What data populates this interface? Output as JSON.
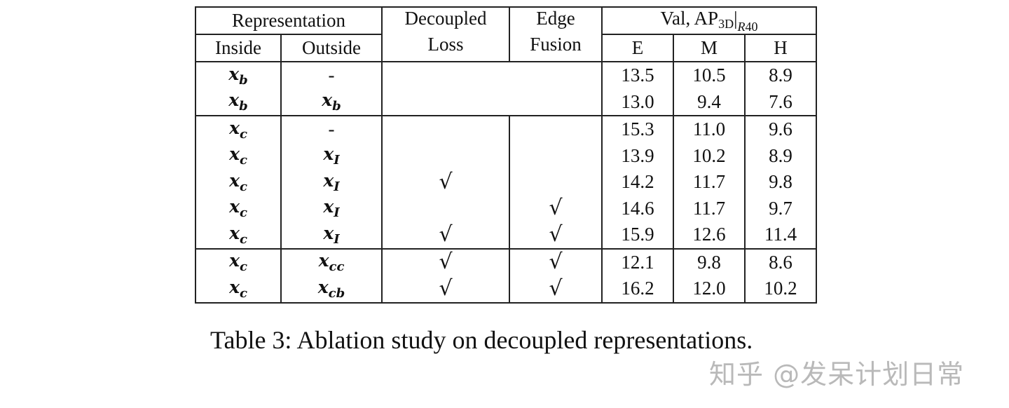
{
  "table": {
    "header": {
      "representation": "Representation",
      "inside": "Inside",
      "outside": "Outside",
      "decoupled_line1": "Decoupled",
      "decoupled_line2": "Loss",
      "edge_line1": "Edge",
      "edge_line2": "Fusion",
      "metric_prefix": "Val, AP",
      "metric_sub": "3D",
      "metric_bar": "|",
      "metric_cond": "R",
      "metric_cond_sub": "40",
      "easy": "E",
      "moderate": "M",
      "hard": "H"
    },
    "rows": [
      {
        "inside": "x",
        "inside_sub": "b",
        "outside": "-",
        "outside_sub": "",
        "decoupled": "",
        "edge": "",
        "E": "13.5",
        "M": "10.5",
        "H": "8.9",
        "bold": []
      },
      {
        "inside": "x",
        "inside_sub": "b",
        "outside": "x",
        "outside_sub": "b",
        "decoupled": "",
        "edge": "",
        "E": "13.0",
        "M": "9.4",
        "H": "7.6",
        "bold": []
      },
      {
        "inside": "x",
        "inside_sub": "c",
        "outside": "-",
        "outside_sub": "",
        "decoupled": "",
        "edge": "",
        "E": "15.3",
        "M": "11.0",
        "H": "9.6",
        "bold": []
      },
      {
        "inside": "x",
        "inside_sub": "c",
        "outside": "x",
        "outside_sub": "I",
        "decoupled": "",
        "edge": "",
        "E": "13.9",
        "M": "10.2",
        "H": "8.9",
        "bold": []
      },
      {
        "inside": "x",
        "inside_sub": "c",
        "outside": "x",
        "outside_sub": "I",
        "decoupled": "√",
        "edge": "",
        "E": "14.2",
        "M": "11.7",
        "H": "9.8",
        "bold": []
      },
      {
        "inside": "x",
        "inside_sub": "c",
        "outside": "x",
        "outside_sub": "I",
        "decoupled": "",
        "edge": "√",
        "E": "14.6",
        "M": "11.7",
        "H": "9.7",
        "bold": []
      },
      {
        "inside": "x",
        "inside_sub": "c",
        "outside": "x",
        "outside_sub": "I",
        "decoupled": "√",
        "edge": "√",
        "E": "15.9",
        "M": "12.6",
        "H": "11.4",
        "bold": [
          "M",
          "H"
        ]
      },
      {
        "inside": "x",
        "inside_sub": "c",
        "outside": "x",
        "outside_sub": "cc",
        "decoupled": "√",
        "edge": "√",
        "E": "12.1",
        "M": "9.8",
        "H": "8.6",
        "bold": []
      },
      {
        "inside": "x",
        "inside_sub": "c",
        "outside": "x",
        "outside_sub": "cb",
        "decoupled": "√",
        "edge": "√",
        "E": "16.2",
        "M": "12.0",
        "H": "10.2",
        "bold": [
          "E"
        ]
      }
    ]
  },
  "caption": "Table 3: Ablation study on decoupled representations.",
  "watermark": "知乎 @发呆计划日常"
}
